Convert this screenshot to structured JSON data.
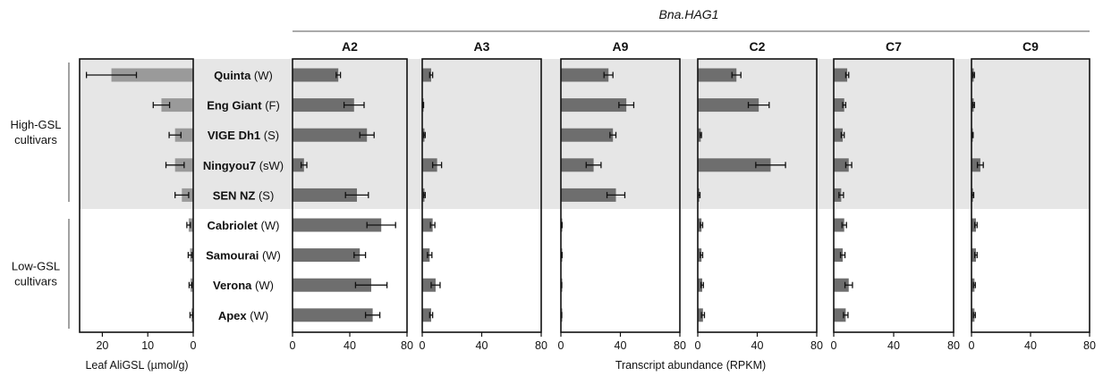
{
  "chart_data": {
    "type": "bar",
    "orientation": "horizontal",
    "gene_title": "Bna.HAG1",
    "categories": [
      {
        "name": "Quinta",
        "type": "(W)"
      },
      {
        "name": "Eng Giant",
        "type": "(F)"
      },
      {
        "name": "VIGE Dh1",
        "type": "(S)"
      },
      {
        "name": "Ningyou7",
        "type": "(sW)"
      },
      {
        "name": "SEN NZ",
        "type": "(S)"
      },
      {
        "name": "Cabriolet",
        "type": "(W)"
      },
      {
        "name": "Samourai",
        "type": "(W)"
      },
      {
        "name": "Verona",
        "type": "(W)"
      },
      {
        "name": "Apex",
        "type": "(W)"
      }
    ],
    "groups": [
      {
        "label": "High-GSL\ncultivars",
        "rows": [
          0,
          1,
          2,
          3,
          4
        ],
        "shaded": true
      },
      {
        "label": "Low-GSL\ncultivars",
        "rows": [
          5,
          6,
          7,
          8
        ],
        "shaded": false
      }
    ],
    "left_panel": {
      "xlabel": "Leaf AliGSL (µmol/g)",
      "xlim": [
        0,
        25
      ],
      "ticks": [
        20,
        10,
        0
      ],
      "reversed": true,
      "color": "#9a9a9a",
      "values": [
        18,
        7.0,
        4.0,
        4.0,
        2.5,
        1.0,
        0.7,
        0.6,
        0.4
      ],
      "errors": [
        5.5,
        1.8,
        1.3,
        2.0,
        1.5,
        0.4,
        0.4,
        0.3,
        0.3
      ]
    },
    "right_xlabel": "Transcript abundance (RPKM)",
    "right_panels": [
      {
        "title": "A2",
        "xlim": [
          0,
          80
        ],
        "ticks": [
          0,
          40,
          80
        ],
        "values": [
          32,
          43,
          52,
          8,
          45,
          62,
          47,
          55,
          56
        ],
        "errors": [
          1.5,
          7,
          5,
          2,
          8,
          10,
          4,
          11,
          5
        ]
      },
      {
        "title": "A3",
        "xlim": [
          0,
          80
        ],
        "ticks": [
          0,
          40,
          80
        ],
        "values": [
          6,
          0.6,
          1.5,
          10,
          1.5,
          7,
          5,
          9,
          6
        ],
        "errors": [
          1,
          0.3,
          0.5,
          3,
          0.5,
          1.5,
          1.5,
          3,
          1
        ]
      },
      {
        "title": "A9",
        "xlim": [
          0,
          80
        ],
        "ticks": [
          0,
          40,
          80
        ],
        "values": [
          32,
          44,
          35,
          22,
          37,
          0.6,
          0.6,
          0.4,
          0.4
        ],
        "errors": [
          3,
          5,
          2,
          5,
          6,
          0.2,
          0.2,
          0.2,
          0.2
        ]
      },
      {
        "title": "C2",
        "xlim": [
          0,
          80
        ],
        "ticks": [
          0,
          40,
          80
        ],
        "values": [
          26,
          41,
          2,
          49,
          1,
          2.5,
          2.5,
          3,
          3.5
        ],
        "errors": [
          3,
          7,
          0.5,
          10,
          0.5,
          0.8,
          0.8,
          0.8,
          1
        ]
      },
      {
        "title": "C7",
        "xlim": [
          0,
          80
        ],
        "ticks": [
          0,
          40,
          80
        ],
        "values": [
          9,
          7,
          6,
          10,
          5,
          7,
          6,
          10,
          8
        ],
        "errors": [
          1,
          1,
          1,
          2,
          1.5,
          1.5,
          1.5,
          2.5,
          1.5
        ]
      },
      {
        "title": "C9",
        "xlim": [
          0,
          80
        ],
        "ticks": [
          0,
          40,
          80
        ],
        "values": [
          1.5,
          1.5,
          0.8,
          6,
          1,
          3,
          3,
          2,
          2
        ],
        "errors": [
          0.5,
          0.5,
          0.3,
          2,
          0.5,
          0.8,
          0.8,
          0.6,
          0.6
        ]
      }
    ],
    "bar_color": "#6e6e6e",
    "shade_color": "#e6e6e6",
    "grid": false,
    "legend": "none"
  }
}
